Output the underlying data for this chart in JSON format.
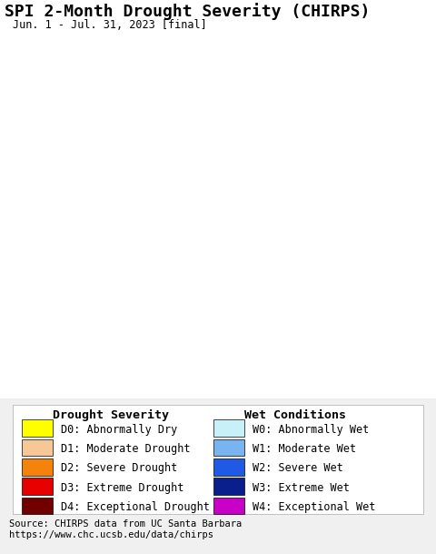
{
  "title": "SPI 2-Month Drought Severity (CHIRPS)",
  "subtitle": "Jun. 1 - Jul. 31, 2023 [final]",
  "title_fontsize": 13,
  "subtitle_fontsize": 8.5,
  "source_text": "Source: CHIRPS data from UC Santa Barbara\nhttps://www.chc.ucsb.edu/data/chirps",
  "source_fontsize": 7.5,
  "legend_title_fontsize": 9.5,
  "legend_fontsize": 8.5,
  "background_map_color": "#b8eef8",
  "land_color": "#e8e8e8",
  "drought_labels": [
    "D0: Abnormally Dry",
    "D1: Moderate Drought",
    "D2: Severe Drought",
    "D3: Extreme Drought",
    "D4: Exceptional Drought"
  ],
  "drought_colors": [
    "#ffff00",
    "#f5c896",
    "#f5820a",
    "#e60000",
    "#730000"
  ],
  "wet_labels": [
    "W0: Abnormally Wet",
    "W1: Moderate Wet",
    "W2: Severe Wet",
    "W3: Extreme Wet",
    "W4: Exceptional Wet"
  ],
  "wet_colors": [
    "#c8f0f8",
    "#78b4f0",
    "#1e5ae6",
    "#0a1e8c",
    "#c800c8"
  ],
  "fig_width": 4.8,
  "fig_height": 6.09,
  "dpi": 100
}
